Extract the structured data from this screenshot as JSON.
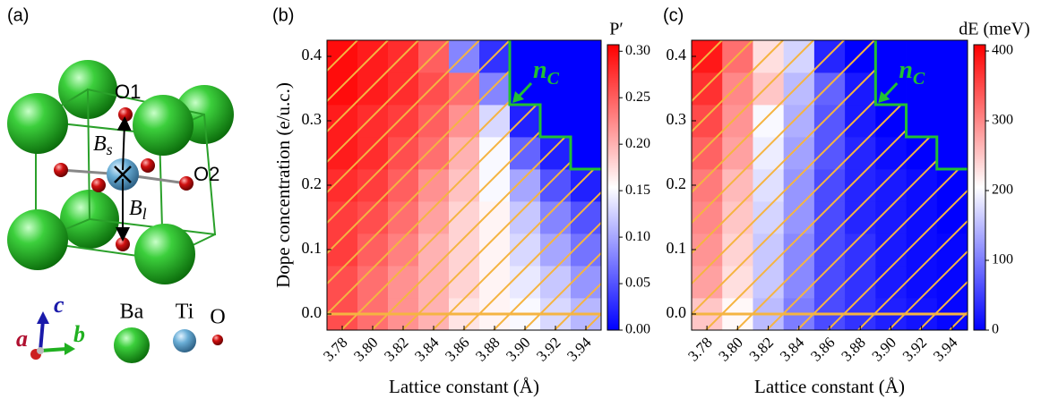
{
  "panel_a": {
    "tag": "(a)",
    "O1": "O1",
    "O2": "O2",
    "Bs": {
      "main": "B",
      "sub": "s"
    },
    "Bl": {
      "main": "B",
      "sub": "l"
    },
    "axes": {
      "a": "a",
      "b": "b",
      "c": "c"
    },
    "legend": [
      "Ba",
      "Ti",
      "O"
    ]
  },
  "chart_data": [
    {
      "type": "heatmap",
      "tag": "(b)",
      "xlabel": "Lattice constant (Å)",
      "ylabel": "Dope concentration (e/u.c.)",
      "colorbar_label": "P′",
      "cmap": [
        "#0000ff",
        "#ffffff",
        "#ff0000"
      ],
      "x": [
        3.78,
        3.8,
        3.82,
        3.84,
        3.86,
        3.88,
        3.9,
        3.92,
        3.94
      ],
      "y": [
        0,
        0.05,
        0.1,
        0.15,
        0.2,
        0.25,
        0.3,
        0.35,
        0.4
      ],
      "z": [
        [
          0.26,
          0.24,
          0.22,
          0.2,
          0.17,
          0.16,
          0.15,
          0.13,
          0.11
        ],
        [
          0.26,
          0.24,
          0.22,
          0.2,
          0.18,
          0.16,
          0.14,
          0.12,
          0.09
        ],
        [
          0.27,
          0.25,
          0.23,
          0.2,
          0.18,
          0.16,
          0.13,
          0.1,
          0.07
        ],
        [
          0.27,
          0.26,
          0.24,
          0.21,
          0.18,
          0.16,
          0.12,
          0.08,
          0.05
        ],
        [
          0.28,
          0.27,
          0.25,
          0.22,
          0.19,
          0.15,
          0.1,
          0.05,
          0.02
        ],
        [
          0.29,
          0.28,
          0.26,
          0.24,
          0.2,
          0.15,
          0.06,
          0.02,
          0
        ],
        [
          0.29,
          0.28,
          0.27,
          0.25,
          0.22,
          0.13,
          0.02,
          0,
          0
        ],
        [
          0.3,
          0.29,
          0.28,
          0.26,
          0.24,
          0.08,
          0,
          0,
          0
        ],
        [
          0.3,
          0.29,
          0.28,
          0.25,
          0.08,
          0.03,
          0,
          0,
          0
        ]
      ],
      "xlim": [
        3.77,
        3.95
      ],
      "ylim": [
        -0.025,
        0.425
      ],
      "xticks": [
        3.78,
        {
          "value": 3.8,
          "label": "3.80"
        },
        3.82,
        3.84,
        3.86,
        3.88,
        {
          "value": 3.9,
          "label": "3.90"
        },
        3.92,
        3.94
      ],
      "yticks": [
        {
          "value": 0,
          "label": "0.0"
        },
        0.1,
        0.2,
        0.3,
        0.4
      ],
      "clim": [
        0,
        0.307
      ],
      "cticks": [
        {
          "value": 0,
          "label": "0.00"
        },
        0.05,
        {
          "value": 0.1,
          "label": "0.10"
        },
        0.15,
        {
          "value": 0.2,
          "label": "0.20"
        },
        0.25,
        {
          "value": 0.3,
          "label": "0.30"
        }
      ],
      "nc_boundary": {
        "x": [
          3.89,
          3.89,
          3.91,
          3.91,
          3.93,
          3.93,
          3.95
        ],
        "y": [
          0.425,
          0.325,
          0.325,
          0.275,
          0.275,
          0.225,
          0.225
        ],
        "color": "#22c032"
      },
      "nc_label": {
        "main": "n",
        "sub": "C"
      }
    },
    {
      "type": "heatmap",
      "tag": "(c)",
      "xlabel": "Lattice constant (Å)",
      "colorbar_label": "dE (meV)",
      "cmap": [
        "#0000ff",
        "#ffffff",
        "#ff0000"
      ],
      "x": [
        3.78,
        3.8,
        3.82,
        3.84,
        3.86,
        3.88,
        3.9,
        3.92,
        3.94
      ],
      "y": [
        0,
        0.05,
        0.1,
        0.15,
        0.2,
        0.25,
        0.3,
        0.35,
        0.4
      ],
      "z": [
        [
          250,
          210,
          150,
          100,
          60,
          40,
          25,
          15,
          5
        ],
        [
          280,
          230,
          160,
          110,
          60,
          40,
          20,
          10,
          5
        ],
        [
          290,
          240,
          160,
          110,
          60,
          40,
          20,
          10,
          5
        ],
        [
          300,
          250,
          170,
          120,
          60,
          30,
          20,
          10,
          0
        ],
        [
          310,
          260,
          180,
          120,
          60,
          30,
          20,
          10,
          0
        ],
        [
          330,
          280,
          190,
          130,
          70,
          30,
          10,
          0,
          0
        ],
        [
          350,
          290,
          200,
          140,
          70,
          20,
          0,
          0,
          0
        ],
        [
          370,
          300,
          250,
          150,
          80,
          20,
          0,
          0,
          0
        ],
        [
          390,
          320,
          230,
          170,
          30,
          0,
          0,
          0,
          0
        ]
      ],
      "xlim": [
        3.77,
        3.95
      ],
      "ylim": [
        -0.025,
        0.425
      ],
      "xticks": [
        3.78,
        {
          "value": 3.8,
          "label": "3.80"
        },
        3.82,
        3.84,
        3.86,
        3.88,
        {
          "value": 3.9,
          "label": "3.90"
        },
        3.92,
        3.94
      ],
      "yticks": [
        {
          "value": 0,
          "label": "0.0"
        },
        0.1,
        0.2,
        0.3,
        0.4
      ],
      "clim": [
        0,
        409
      ],
      "cticks": [
        0,
        100,
        200,
        300,
        400
      ],
      "nc_boundary": {
        "x": [
          3.89,
          3.89,
          3.91,
          3.91,
          3.93,
          3.93,
          3.95
        ],
        "y": [
          0.425,
          0.325,
          0.325,
          0.275,
          0.275,
          0.225,
          0.225
        ],
        "color": "#22c032"
      },
      "nc_label": {
        "main": "n",
        "sub": "C"
      }
    }
  ]
}
